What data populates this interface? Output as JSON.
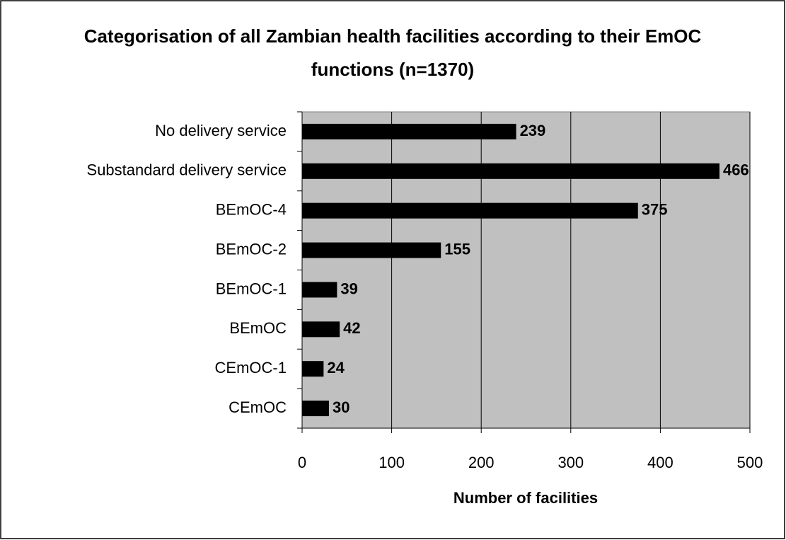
{
  "chart_data": {
    "type": "barh",
    "title": "Categorisation of all Zambian health facilities according to their EmOC functions (n=1370)",
    "x_label": "Number of facilities",
    "categories": [
      "No delivery service",
      "Substandard delivery service",
      "BEmOC-4",
      "BEmOC-2",
      "BEmOC-1",
      "BEmOC",
      "CEmOC-1",
      "CEmOC"
    ],
    "values": [
      239,
      466,
      375,
      155,
      39,
      42,
      24,
      30
    ],
    "color": "#000000",
    "plot_background": "#c0c0c0",
    "xlim": [
      0,
      500
    ],
    "xticks": [
      0,
      100,
      200,
      300,
      400,
      500
    ],
    "grid": true
  }
}
